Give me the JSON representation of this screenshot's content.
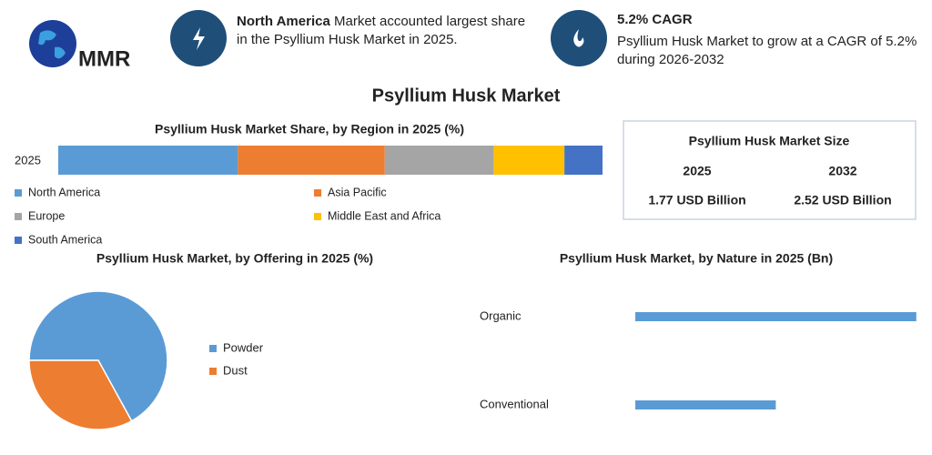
{
  "logo": "MMR",
  "header": [
    {
      "bold": "North America",
      "text": "Market accounted largest share in the Psyllium Husk Market in 2025."
    },
    {
      "bold": "5.2% CAGR",
      "text": "Psyllium Husk Market to grow at a CAGR of 5.2% during 2026-2032"
    }
  ],
  "title": "Psyllium Husk Market",
  "size_box": {
    "title": "Psyllium Husk Market Size",
    "years": [
      "2025",
      "2032"
    ],
    "values": [
      "1.77 USD Billion",
      "2.52 USD Billion"
    ]
  },
  "chart_data": [
    {
      "type": "stacked_bar",
      "title": "Psyllium Husk Market Share, by Region in 2025 (%)",
      "categories": [
        "2025"
      ],
      "xlim": [
        0,
        100
      ],
      "series": [
        {
          "name": "North America",
          "color": "#5b9bd5",
          "values": [
            33
          ]
        },
        {
          "name": "Asia Pacific",
          "color": "#ed7d31",
          "values": [
            27
          ]
        },
        {
          "name": "Europe",
          "color": "#a5a5a5",
          "values": [
            20
          ]
        },
        {
          "name": "Middle East and Africa",
          "color": "#ffc000",
          "values": [
            13
          ]
        },
        {
          "name": "South America",
          "color": "#4472c4",
          "values": [
            7
          ]
        }
      ]
    },
    {
      "type": "pie",
      "title": "Psyllium Husk Market, by Offering in 2025 (%)",
      "categories": [
        "Powder",
        "Dust"
      ],
      "values": [
        67,
        33
      ],
      "colors": [
        "#5b9bd5",
        "#ed7d31"
      ]
    },
    {
      "type": "bar",
      "title": "Psyllium Husk Market, by Nature in 2025 (Bn)",
      "categories": [
        "Organic",
        "Conventional"
      ],
      "values": [
        1.18,
        0.59
      ],
      "color": "#5b9bd5",
      "xlim": [
        0,
        1.2
      ]
    }
  ]
}
